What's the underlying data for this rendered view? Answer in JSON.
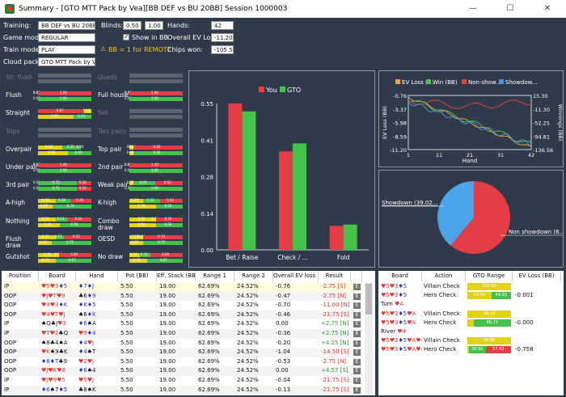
{
  "window": {
    "title": "Summary - [GTO MTT Pack by Vea][BB DEF vs BU 20BB] Session 1000003",
    "minimize": "—",
    "maximize": "☐",
    "close": "✕"
  },
  "form": {
    "training_label": "Training:",
    "training_value": "BB DEF vs BU 20BB",
    "blinds_label": "Blinds:",
    "blind1": "0.50",
    "blind2": "1.00",
    "hands_label": "Hands:",
    "hands_value": "42",
    "game_mode_label": "Game mode:",
    "game_mode_value": "REGULAR",
    "show_in_bb": "Show in BB",
    "overall_ev_label": "Overall EV Loss:",
    "overall_ev_value": "-11.20",
    "train_mode_label": "Train mode:",
    "train_mode_value": "PLAY",
    "bb_note": "BB = 1 for REMOTE",
    "chips_won_label": "Chips won:",
    "chips_won_value": "-105.56",
    "cloud_pack_label": "Cloud pack:",
    "cloud_pack_value": "GTO MTT Pack by Vea"
  },
  "hand_categories": [
    {
      "name": "Str. flush",
      "active": false
    },
    {
      "name": "Quads",
      "active": false
    },
    {
      "name": "Flush",
      "active": true,
      "top": [
        "0.00",
        "0.00",
        "1.00"
      ],
      "bottom": [
        "0.00",
        "1.00"
      ]
    },
    {
      "name": "Full house",
      "active": true,
      "top": [
        "0.00",
        "0.00",
        "1.00"
      ],
      "bottom": [
        "0.00",
        "1.00"
      ]
    },
    {
      "name": "Straight",
      "active": true,
      "top": [
        "0.87",
        "0.13"
      ],
      "bottom": [
        "0.67",
        "0.33"
      ]
    },
    {
      "name": "Set",
      "active": false
    },
    {
      "name": "Trips",
      "active": false
    },
    {
      "name": "Two pairs",
      "active": false
    },
    {
      "name": "Overpair",
      "active": true,
      "top": [
        "0.46",
        "0.35",
        "0.00"
      ],
      "bottom": [
        "0.56",
        "0.44"
      ]
    },
    {
      "name": "Top pair",
      "active": true,
      "top": [
        "0.08",
        "0.00",
        "0.92"
      ],
      "bottom": [
        "0.08",
        "0.92"
      ]
    },
    {
      "name": "Under pair",
      "active": true,
      "top": [
        "0.00",
        "0.00",
        "1.00"
      ],
      "bottom": [
        "0.00",
        "1.00"
      ]
    },
    {
      "name": "2nd pair",
      "active": true,
      "top": [
        "0.00",
        "0.00",
        "1.00"
      ],
      "bottom": [
        "0.00",
        "1.00"
      ]
    },
    {
      "name": "3rd pair",
      "active": true,
      "top": [
        "0.00",
        "0.72",
        "0.28"
      ],
      "bottom": [
        "0.00",
        "0.72",
        "0.28"
      ]
    },
    {
      "name": "Weak pair",
      "active": true,
      "top": [
        "0.08",
        "0.40",
        "0.52"
      ],
      "bottom": [
        "0.00",
        "1.00"
      ]
    },
    {
      "name": "A-high",
      "active": true,
      "top": [
        "0.33",
        "0.28",
        "0.39"
      ],
      "bottom": [
        "0.27",
        "0.73"
      ]
    },
    {
      "name": "K-high",
      "active": true,
      "top": [
        "0.25",
        "0.33",
        "0.42"
      ],
      "bottom": [
        "0.50",
        "0.50"
      ]
    },
    {
      "name": "Nothing",
      "active": true,
      "top": [
        "0.33",
        "0.23",
        "0.44"
      ],
      "bottom": [
        "0.41",
        "0.59"
      ]
    },
    {
      "name": "Combo draw",
      "active": true,
      "top": [
        "0.50",
        "0.00",
        "0.50"
      ],
      "bottom": [
        "0.50",
        "0.50"
      ]
    },
    {
      "name": "Flush draw",
      "active": true,
      "top": [
        "0.33",
        "0.15",
        "0.52"
      ],
      "bottom": [
        "0.25",
        "0.75"
      ]
    },
    {
      "name": "OESD",
      "active": true,
      "top": [
        "0.25",
        "0.00",
        "0.75"
      ],
      "bottom": [
        "0.25",
        "0.75"
      ]
    },
    {
      "name": "Gutshot",
      "active": true,
      "top": [
        "0.40",
        "0.00",
        "0.60"
      ],
      "bottom": [
        "0.33",
        "0.67"
      ]
    },
    {
      "name": "No draw",
      "active": true,
      "top": [
        "0.20",
        "0.20",
        "0.60"
      ],
      "bottom": [
        "0.33",
        "0.67"
      ]
    }
  ],
  "chart_data": [
    {
      "type": "bar",
      "legend": [
        "You",
        "GTO"
      ],
      "colors": [
        "#e53d45",
        "#46c24a"
      ],
      "categories": [
        "Bet / Raise",
        "Check / ...",
        "Fold"
      ],
      "series": [
        {
          "name": "You",
          "values": [
            0.55,
            0.37,
            0.09
          ]
        },
        {
          "name": "GTO",
          "values": [
            0.52,
            0.4,
            0.095
          ]
        }
      ],
      "yticks": [
        "0.55",
        "0.41",
        "0.28",
        "0.14",
        "0.00"
      ],
      "ylim": [
        0,
        0.55
      ]
    },
    {
      "type": "line",
      "legend": [
        "EV Loss (...",
        "Win (BB)",
        "Non-show...",
        "Showdow..."
      ],
      "colors": [
        "#f0a23a",
        "#46c24a",
        "#e53d45",
        "#4d8fe0"
      ],
      "xlabel": "Hand",
      "ylabel": "EV Loss (BB)",
      "y2label": "Winnings (BB)",
      "xticks": [
        "1",
        "11",
        "21",
        "31",
        "42"
      ],
      "yticks": [
        "-0.76",
        "-3.37",
        "-5.98",
        "-8.59",
        "-11.20"
      ],
      "y2ticks": [
        "15.30",
        "-11.30",
        "-52.25",
        "-94.81",
        "-136.56"
      ]
    },
    {
      "type": "pie",
      "labels": [
        "Showdown (39.02...",
        "Non showdown (6..."
      ],
      "values": [
        39.02,
        60.98
      ],
      "colors": [
        "#4ba3e8",
        "#e53d45"
      ]
    }
  ],
  "hands_table": {
    "headers": [
      "Position",
      "Board",
      "Hand",
      "Pot (BB)",
      "Eff. Stack (BB)",
      "Range 1",
      "Range 2",
      "Overall EV loss (...",
      "Result"
    ],
    "rows": [
      {
        "pos": "IP",
        "board": "♥5♥3♦5",
        "hand": "♦7♦J",
        "pot": "5.50",
        "stack": "19.00",
        "r1": "62.69%",
        "r2": "24.52%",
        "ev": "-0.76",
        "res": "-2.75 [S]",
        "sel": true
      },
      {
        "pos": "OOP",
        "board": "♥J♥T♥9",
        "hand": "♣6♦9",
        "pot": "5.50",
        "stack": "19.00",
        "r1": "62.69%",
        "r2": "24.52%",
        "ev": "-0.47",
        "res": "-2.75 [N]"
      },
      {
        "pos": "OOP",
        "board": "♥4♥3♦K",
        "hand": "♦K♦5",
        "pot": "5.50",
        "stack": "19.00",
        "r1": "62.69%",
        "r2": "24.52%",
        "ev": "-0.70",
        "res": "-11.00 [N]"
      },
      {
        "pos": "OOP",
        "board": "♥4♥T♥J",
        "hand": "♠6♦K",
        "pot": "5.50",
        "stack": "19.00",
        "r1": "62.69%",
        "r2": "24.52%",
        "ev": "-0.46",
        "res": "-21.75 [S]"
      },
      {
        "pos": "IP",
        "board": "♠Q♣J♥3",
        "hand": "♦6♠A",
        "pot": "5.50",
        "stack": "19.00",
        "r1": "62.69%",
        "r2": "24.52%",
        "ev": "0.00",
        "res": "+2.75 [N]"
      },
      {
        "pos": "IP",
        "board": "♥T♥2♣Q",
        "hand": "♥9♦4",
        "pot": "5.50",
        "stack": "19.00",
        "r1": "62.69%",
        "r2": "24.52%",
        "ev": "-0.36",
        "res": "+2.75 [N]"
      },
      {
        "pos": "OOP",
        "board": "♠8♣4♠A",
        "hand": "♦4♥J",
        "pot": "5.50",
        "stack": "19.00",
        "r1": "62.69%",
        "r2": "24.52%",
        "ev": "-0.20",
        "res": "+4.25 [N]"
      },
      {
        "pos": "OOP",
        "board": "♥K♠9♣K",
        "hand": "♦4♠T",
        "pot": "5.50",
        "stack": "19.00",
        "r1": "62.69%",
        "r2": "24.52%",
        "ev": "-1.04",
        "res": "-14.50 [S]"
      },
      {
        "pos": "OOP",
        "board": "♦8♦T♣9",
        "hand": "♥2♥J",
        "pot": "5.50",
        "stack": "19.00",
        "r1": "62.69%",
        "r2": "24.52%",
        "ev": "-0.53",
        "res": "-2.75 [N]"
      },
      {
        "pos": "OOP",
        "board": "♥J♥K♥8",
        "hand": "♦6♠4",
        "pot": "5.50",
        "stack": "19.00",
        "r1": "62.69%",
        "r2": "24.52%",
        "ev": "0.00",
        "res": "+4.57 [S]"
      },
      {
        "pos": "IP",
        "board": "♥J♥9♥5",
        "hand": "♥5♥J",
        "pot": "5.50",
        "stack": "19.00",
        "r1": "62.69%",
        "r2": "24.52%",
        "ev": "-0.04",
        "res": "-21.75 [S]"
      },
      {
        "pos": "IP",
        "board": "♦6♠7♦5",
        "hand": "♣8♠K",
        "pot": "5.50",
        "stack": "19.00",
        "r1": "62.69%",
        "r2": "24.52%",
        "ev": "-0.13",
        "res": "-21.75 [S]"
      }
    ]
  },
  "action_table": {
    "headers": [
      "Board",
      "Action",
      "GTO Range",
      "EV Loss (BB)"
    ],
    "rows": [
      {
        "board": "♥5♥3♦5",
        "action": "Villain Check",
        "bars": [
          {
            "c": "yel",
            "w": 1,
            "t": "100.00"
          }
        ],
        "ev": ""
      },
      {
        "board": "♥5♥3♦5",
        "action": "Hero Check",
        "bars": [
          {
            "c": "yel",
            "w": 0.55,
            "t": "54.94"
          },
          {
            "c": "grn",
            "w": 0.45,
            "t": "44.93"
          }
        ],
        "ev": "-0.001"
      },
      {
        "board": "Turn ♥A",
        "action": "",
        "bars": [],
        "ev": ""
      },
      {
        "board": "♥5♥3♦5♥A",
        "action": "Villain Check",
        "bars": [
          {
            "c": "yel",
            "w": 1,
            "t": "99.18"
          }
        ],
        "ev": ""
      },
      {
        "board": "♥5♥3♦5♥A",
        "action": "Hero Check",
        "bars": [
          {
            "c": "yel",
            "w": 0.14,
            "t": ""
          },
          {
            "c": "grn",
            "w": 0.86,
            "t": "86.70"
          }
        ],
        "ev": "-0.000"
      },
      {
        "board": "River ♥4",
        "action": "",
        "bars": [],
        "ev": ""
      },
      {
        "board": "♥5♥3♦5♥A♥4",
        "action": "Villain Check",
        "bars": [
          {
            "c": "yel",
            "w": 1,
            "t": "99.86"
          }
        ],
        "ev": ""
      },
      {
        "board": "♥5♥3♦5♥A♥4",
        "action": "Hero Check",
        "bars": [
          {
            "c": "yel",
            "w": 0.03,
            "t": ""
          },
          {
            "c": "grn",
            "w": 0.39,
            "t": "38.90"
          },
          {
            "c": "red",
            "w": 0.58,
            "t": "57.42"
          }
        ],
        "ev": "-0.758"
      }
    ]
  }
}
